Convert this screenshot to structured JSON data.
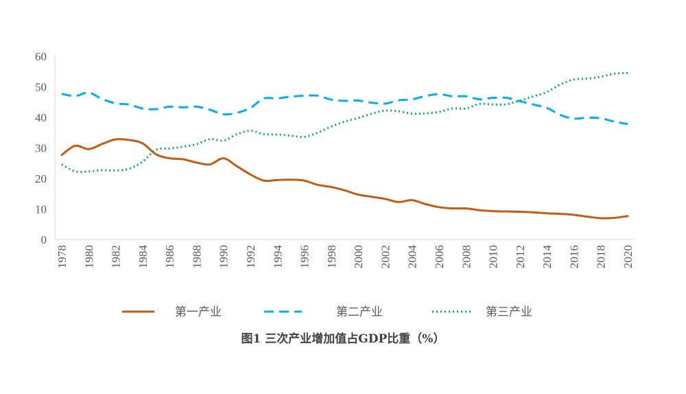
{
  "chart_data": {
    "type": "line",
    "title": "图1  三次产业增加值占GDP比重（%）",
    "xlabel": "",
    "ylabel": "",
    "ylim": [
      0,
      60
    ],
    "yticks": [
      "0",
      "10",
      "20",
      "30",
      "40",
      "50",
      "60"
    ],
    "xlim": [
      1978,
      2020
    ],
    "grid": false,
    "legend": "bottom",
    "x": [
      1978,
      1979,
      1980,
      1981,
      1982,
      1983,
      1984,
      1985,
      1986,
      1987,
      1988,
      1989,
      1990,
      1991,
      1992,
      1993,
      1994,
      1995,
      1996,
      1997,
      1998,
      1999,
      2000,
      2001,
      2002,
      2003,
      2004,
      2005,
      2006,
      2007,
      2008,
      2009,
      2010,
      2011,
      2012,
      2013,
      2014,
      2015,
      2016,
      2017,
      2018,
      2019,
      2020
    ],
    "xticks": [
      "1978",
      "1980",
      "1982",
      "1984",
      "1986",
      "1988",
      "1990",
      "1992",
      "1994",
      "1996",
      "1998",
      "2000",
      "2002",
      "2004",
      "2006",
      "2008",
      "2010",
      "2012",
      "2014",
      "2016",
      "2018",
      "2020"
    ],
    "series": [
      {
        "name": "第一产业",
        "color": "#C55A11",
        "style": "solid",
        "values": [
          27.7,
          30.7,
          29.6,
          31.3,
          32.8,
          32.6,
          31.5,
          27.9,
          26.6,
          26.3,
          25.2,
          24.6,
          26.6,
          24.0,
          21.3,
          19.3,
          19.5,
          19.6,
          19.3,
          17.9,
          17.2,
          16.1,
          14.7,
          14.0,
          13.3,
          12.3,
          12.9,
          11.6,
          10.6,
          10.2,
          10.2,
          9.6,
          9.3,
          9.2,
          9.1,
          8.9,
          8.6,
          8.4,
          8.1,
          7.5,
          7.0,
          7.1,
          7.7
        ]
      },
      {
        "name": "第二产业",
        "color": "#00B0F0",
        "style": "dashed",
        "values": [
          47.7,
          47.0,
          48.1,
          46.0,
          44.6,
          44.2,
          42.9,
          42.7,
          43.5,
          43.3,
          43.5,
          42.5,
          41.0,
          41.5,
          43.1,
          46.2,
          46.2,
          46.8,
          47.1,
          47.1,
          45.8,
          45.4,
          45.5,
          44.8,
          44.5,
          45.6,
          45.9,
          47.0,
          47.6,
          46.9,
          46.9,
          45.9,
          46.4,
          46.4,
          45.3,
          44.2,
          43.1,
          40.8,
          39.6,
          39.9,
          39.7,
          38.6,
          37.8
        ]
      },
      {
        "name": "第三产业",
        "color": "#00B050",
        "style": "dotted",
        "values": [
          24.6,
          22.3,
          22.3,
          22.7,
          22.6,
          23.2,
          25.5,
          29.4,
          29.8,
          30.4,
          31.2,
          32.9,
          32.4,
          34.5,
          35.6,
          34.5,
          34.4,
          34.0,
          33.6,
          35.0,
          37.0,
          38.6,
          39.8,
          41.2,
          42.2,
          42.0,
          41.2,
          41.3,
          41.8,
          42.9,
          42.9,
          44.4,
          44.2,
          44.3,
          45.5,
          46.9,
          48.3,
          50.8,
          52.4,
          52.7,
          53.3,
          54.3,
          54.5
        ]
      }
    ]
  }
}
